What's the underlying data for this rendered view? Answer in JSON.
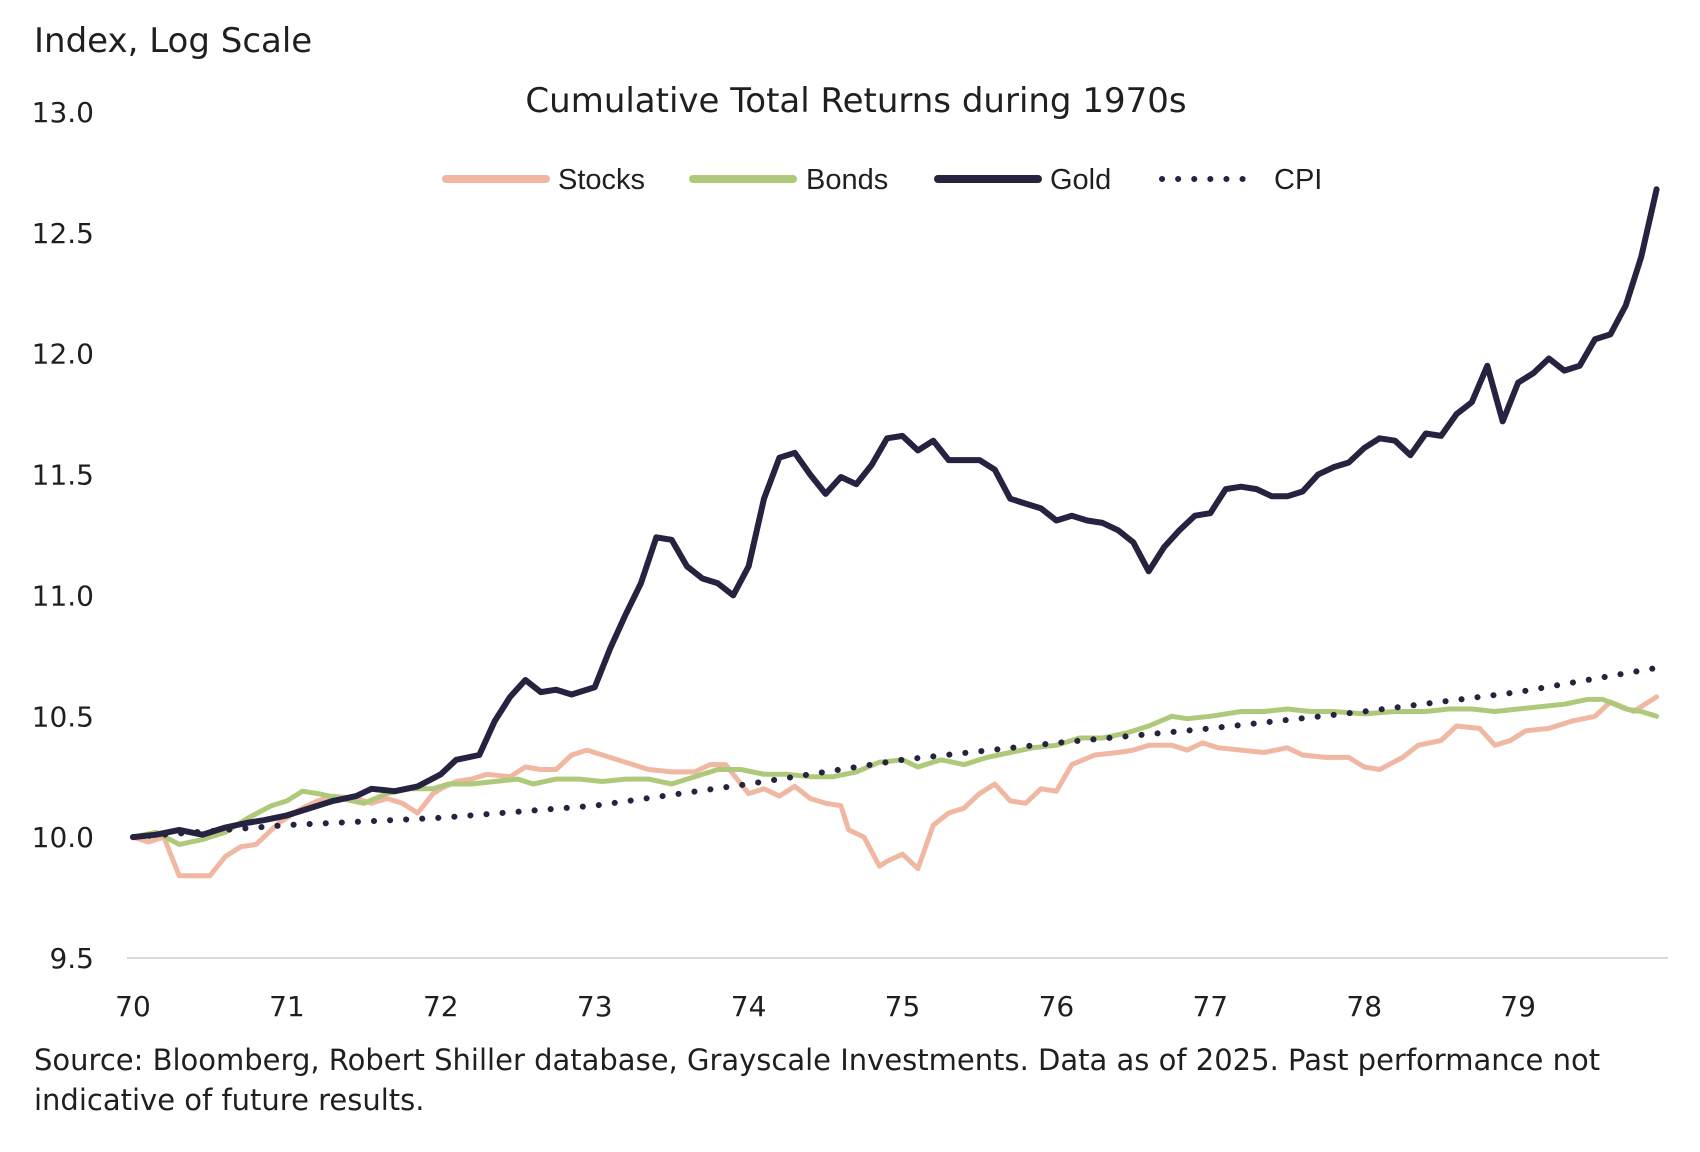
{
  "chart_data": {
    "type": "line",
    "title": "Cumulative Total Returns during 1970s",
    "ylabel": "Index, Log Scale",
    "xlabel": "",
    "source": "Source: Bloomberg, Robert Shiller database, Grayscale Investments. Data as of 2025. Past performance not indicative of future results.",
    "y_scale": "log (index values shown as log units)",
    "ylim": [
      9.5,
      13.0
    ],
    "y_ticks": [
      "13.0",
      "12.5",
      "12.0",
      "11.5",
      "11.0",
      "10.5",
      "10.0",
      "9.5"
    ],
    "xlim": [
      70,
      80
    ],
    "x_ticks": [
      "70",
      "71",
      "72",
      "73",
      "74",
      "75",
      "76",
      "77",
      "78",
      "79"
    ],
    "legend_position": "top-center",
    "grid": false,
    "series": [
      {
        "name": "Stocks",
        "color": "#F0B8A3",
        "style": "solid",
        "x": [
          70.0,
          70.1,
          70.2,
          70.3,
          70.35,
          70.5,
          70.6,
          70.7,
          70.8,
          70.95,
          71.0,
          71.1,
          71.2,
          71.3,
          71.45,
          71.55,
          71.65,
          71.75,
          71.85,
          71.95,
          72.0,
          72.1,
          72.2,
          72.3,
          72.45,
          72.55,
          72.65,
          72.75,
          72.85,
          72.95,
          73.05,
          73.2,
          73.35,
          73.5,
          73.65,
          73.75,
          73.85,
          74.0,
          74.1,
          74.2,
          74.3,
          74.4,
          74.5,
          74.6,
          74.65,
          74.75,
          74.85,
          74.9,
          75.0,
          75.1,
          75.2,
          75.3,
          75.4,
          75.5,
          75.6,
          75.7,
          75.8,
          75.9,
          76.0,
          76.1,
          76.25,
          76.4,
          76.5,
          76.6,
          76.75,
          76.85,
          76.95,
          77.05,
          77.2,
          77.35,
          77.5,
          77.6,
          77.75,
          77.9,
          78.0,
          78.1,
          78.25,
          78.35,
          78.5,
          78.6,
          78.75,
          78.85,
          78.95,
          79.05,
          79.2,
          79.35,
          79.5,
          79.6,
          79.75,
          79.9
        ],
        "values": [
          10.0,
          9.98,
          10.0,
          9.84,
          9.84,
          9.84,
          9.92,
          9.96,
          9.97,
          10.06,
          10.08,
          10.12,
          10.15,
          10.17,
          10.16,
          10.14,
          10.16,
          10.14,
          10.1,
          10.18,
          10.2,
          10.23,
          10.24,
          10.26,
          10.25,
          10.29,
          10.28,
          10.28,
          10.34,
          10.36,
          10.34,
          10.31,
          10.28,
          10.27,
          10.27,
          10.3,
          10.3,
          10.18,
          10.2,
          10.17,
          10.21,
          10.16,
          10.14,
          10.13,
          10.03,
          10.0,
          9.88,
          9.9,
          9.93,
          9.87,
          10.05,
          10.1,
          10.12,
          10.18,
          10.22,
          10.15,
          10.14,
          10.2,
          10.19,
          10.3,
          10.34,
          10.35,
          10.36,
          10.38,
          10.38,
          10.36,
          10.39,
          10.37,
          10.36,
          10.35,
          10.37,
          10.34,
          10.33,
          10.33,
          10.29,
          10.28,
          10.33,
          10.38,
          10.4,
          10.46,
          10.45,
          10.38,
          10.4,
          10.44,
          10.45,
          10.48,
          10.5,
          10.56,
          10.52,
          10.58
        ]
      },
      {
        "name": "Bonds",
        "color": "#AFC97A",
        "style": "solid",
        "x": [
          70.0,
          70.15,
          70.3,
          70.45,
          70.6,
          70.75,
          70.9,
          71.0,
          71.1,
          71.2,
          71.35,
          71.5,
          71.65,
          71.8,
          71.95,
          72.05,
          72.2,
          72.35,
          72.5,
          72.6,
          72.75,
          72.9,
          73.05,
          73.2,
          73.35,
          73.5,
          73.65,
          73.8,
          73.95,
          74.1,
          74.25,
          74.4,
          74.55,
          74.7,
          74.85,
          75.0,
          75.1,
          75.25,
          75.4,
          75.55,
          75.7,
          75.85,
          76.0,
          76.15,
          76.3,
          76.45,
          76.6,
          76.75,
          76.85,
          77.0,
          77.2,
          77.35,
          77.5,
          77.65,
          77.8,
          78.0,
          78.2,
          78.4,
          78.55,
          78.7,
          78.85,
          79.0,
          79.15,
          79.3,
          79.45,
          79.55,
          79.7,
          79.8,
          79.9
        ],
        "values": [
          10.0,
          10.02,
          9.97,
          9.99,
          10.02,
          10.08,
          10.13,
          10.15,
          10.19,
          10.18,
          10.16,
          10.14,
          10.18,
          10.2,
          10.2,
          10.22,
          10.22,
          10.23,
          10.24,
          10.22,
          10.24,
          10.24,
          10.23,
          10.24,
          10.24,
          10.22,
          10.25,
          10.28,
          10.28,
          10.26,
          10.26,
          10.25,
          10.25,
          10.27,
          10.31,
          10.32,
          10.29,
          10.32,
          10.3,
          10.33,
          10.35,
          10.37,
          10.38,
          10.41,
          10.41,
          10.43,
          10.46,
          10.5,
          10.49,
          10.5,
          10.52,
          10.52,
          10.53,
          10.52,
          10.52,
          10.51,
          10.52,
          10.52,
          10.53,
          10.53,
          10.52,
          10.53,
          10.54,
          10.55,
          10.57,
          10.57,
          10.53,
          10.52,
          10.5
        ]
      },
      {
        "name": "Gold",
        "color": "#25233F",
        "style": "solid",
        "x": [
          70.0,
          70.15,
          70.3,
          70.45,
          70.6,
          70.75,
          70.85,
          71.0,
          71.15,
          71.3,
          71.45,
          71.55,
          71.7,
          71.85,
          72.0,
          72.1,
          72.25,
          72.35,
          72.45,
          72.55,
          72.65,
          72.75,
          72.85,
          73.0,
          73.1,
          73.2,
          73.3,
          73.4,
          73.5,
          73.6,
          73.7,
          73.8,
          73.9,
          74.0,
          74.1,
          74.2,
          74.3,
          74.4,
          74.5,
          74.6,
          74.7,
          74.8,
          74.9,
          75.0,
          75.1,
          75.2,
          75.3,
          75.4,
          75.5,
          75.6,
          75.7,
          75.8,
          75.9,
          76.0,
          76.1,
          76.2,
          76.3,
          76.4,
          76.5,
          76.6,
          76.7,
          76.8,
          76.9,
          77.0,
          77.1,
          77.2,
          77.3,
          77.4,
          77.5,
          77.6,
          77.7,
          77.8,
          77.9,
          78.0,
          78.1,
          78.2,
          78.3,
          78.4,
          78.5,
          78.6,
          78.7,
          78.8,
          78.9,
          79.0,
          79.1,
          79.2,
          79.3,
          79.4,
          79.5,
          79.6,
          79.7,
          79.8,
          79.9
        ],
        "values": [
          10.0,
          10.01,
          10.03,
          10.01,
          10.04,
          10.06,
          10.07,
          10.09,
          10.12,
          10.15,
          10.17,
          10.2,
          10.19,
          10.21,
          10.26,
          10.32,
          10.34,
          10.48,
          10.58,
          10.65,
          10.6,
          10.61,
          10.59,
          10.62,
          10.78,
          10.92,
          11.05,
          11.24,
          11.23,
          11.12,
          11.07,
          11.05,
          11.0,
          11.12,
          11.4,
          11.57,
          11.59,
          11.5,
          11.42,
          11.49,
          11.46,
          11.54,
          11.65,
          11.66,
          11.6,
          11.64,
          11.56,
          11.56,
          11.56,
          11.52,
          11.4,
          11.38,
          11.36,
          11.31,
          11.33,
          11.31,
          11.3,
          11.27,
          11.22,
          11.1,
          11.2,
          11.27,
          11.33,
          11.34,
          11.44,
          11.45,
          11.44,
          11.41,
          11.41,
          11.43,
          11.5,
          11.53,
          11.55,
          11.61,
          11.65,
          11.64,
          11.58,
          11.67,
          11.66,
          11.75,
          11.8,
          11.95,
          11.72,
          11.88,
          11.92,
          11.98,
          11.93,
          11.95,
          12.06,
          12.08,
          12.2,
          12.4,
          12.68
        ]
      },
      {
        "name": "CPI",
        "color": "#25233F",
        "style": "dotted",
        "x": [
          70.0,
          71.0,
          72.0,
          73.0,
          74.0,
          75.0,
          76.0,
          77.0,
          78.0,
          79.0,
          79.9
        ],
        "values": [
          10.0,
          10.05,
          10.08,
          10.13,
          10.22,
          10.32,
          10.39,
          10.45,
          10.52,
          10.6,
          10.7
        ]
      }
    ]
  }
}
